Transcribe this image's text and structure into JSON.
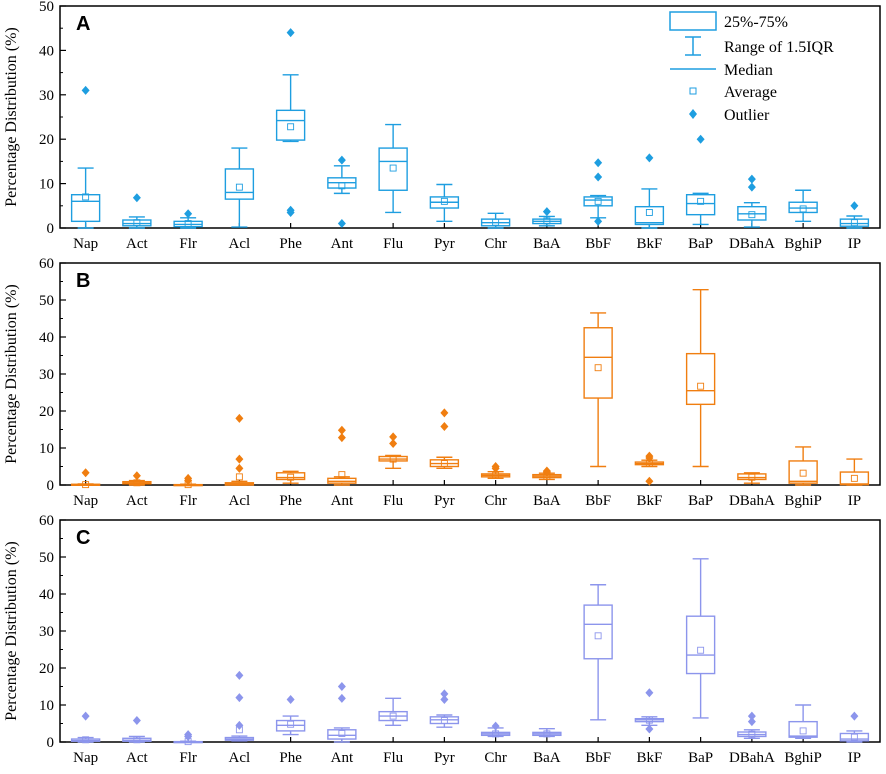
{
  "chart_data": {
    "type": "box",
    "y_axis_title": "Percentage Distribution (%)",
    "categories": [
      "Nap",
      "Act",
      "Flr",
      "Acl",
      "Phe",
      "Ant",
      "Flu",
      "Pyr",
      "Chr",
      "BaA",
      "BbF",
      "BkF",
      "BaP",
      "DBahA",
      "BghiP",
      "IP"
    ],
    "legend": {
      "box": "25%-75%",
      "whisker": "Range of 1.5IQR",
      "median": "Median",
      "average": "Average",
      "outlier": "Outlier"
    },
    "panels": [
      {
        "label": "A",
        "color": "#1e9ee0",
        "ylim": [
          0,
          50
        ],
        "yticks": [
          0,
          10,
          20,
          30,
          40,
          50
        ],
        "boxes": [
          {
            "min": 0,
            "q1": 1.5,
            "median": 6,
            "q3": 7.5,
            "max": 13.5,
            "mean": 7,
            "outliers": [
              31
            ]
          },
          {
            "min": 0,
            "q1": 0.5,
            "median": 1,
            "q3": 1.8,
            "max": 2.5,
            "mean": 1.2,
            "outliers": [
              6.8
            ]
          },
          {
            "min": 0,
            "q1": 0.3,
            "median": 0.8,
            "q3": 1.5,
            "max": 2.3,
            "mean": 1,
            "outliers": [
              3.2
            ]
          },
          {
            "min": 0.2,
            "q1": 6.5,
            "median": 8,
            "q3": 13.3,
            "max": 18,
            "mean": 9.2,
            "outliers": []
          },
          {
            "min": 19.5,
            "q1": 19.8,
            "median": 24.2,
            "q3": 26.5,
            "max": 34.5,
            "mean": 22.8,
            "outliers": [
              44,
              4,
              3.5
            ]
          },
          {
            "min": 7.8,
            "q1": 9,
            "median": 10.2,
            "q3": 11.3,
            "max": 14,
            "mean": 9.5,
            "outliers": [
              15.3,
              1
            ]
          },
          {
            "min": 3.5,
            "q1": 8.5,
            "median": 15,
            "q3": 18,
            "max": 23.3,
            "mean": 13.5,
            "outliers": []
          },
          {
            "min": 1.5,
            "q1": 4.5,
            "median": 5.8,
            "q3": 7,
            "max": 9.8,
            "mean": 6,
            "outliers": []
          },
          {
            "min": 0,
            "q1": 0.5,
            "median": 1.2,
            "q3": 2,
            "max": 3.3,
            "mean": 1.3,
            "outliers": []
          },
          {
            "min": 0.5,
            "q1": 1,
            "median": 1.5,
            "q3": 2,
            "max": 2.6,
            "mean": 1.6,
            "outliers": [
              3.7
            ]
          },
          {
            "min": 2.3,
            "q1": 5,
            "median": 6.3,
            "q3": 7,
            "max": 7.3,
            "mean": 6,
            "outliers": [
              14.7,
              11.5,
              1.5
            ]
          },
          {
            "min": 0,
            "q1": 0.8,
            "median": 1.2,
            "q3": 4.8,
            "max": 8.8,
            "mean": 3.5,
            "outliers": [
              15.8
            ]
          },
          {
            "min": 0.8,
            "q1": 3,
            "median": 5.5,
            "q3": 7.5,
            "max": 7.8,
            "mean": 6,
            "outliers": [
              20
            ]
          },
          {
            "min": 0.2,
            "q1": 1.8,
            "median": 3.2,
            "q3": 4.8,
            "max": 5.7,
            "mean": 3,
            "outliers": [
              11,
              9.2
            ]
          },
          {
            "min": 1.5,
            "q1": 3.5,
            "median": 4.5,
            "q3": 5.8,
            "max": 8.5,
            "mean": 4.3,
            "outliers": []
          },
          {
            "min": 0,
            "q1": 0.4,
            "median": 1,
            "q3": 2,
            "max": 2.7,
            "mean": 1.2,
            "outliers": [
              5
            ]
          }
        ]
      },
      {
        "label": "B",
        "color": "#f07e10",
        "ylim": [
          0,
          60
        ],
        "yticks": [
          0,
          10,
          20,
          30,
          40,
          50,
          60
        ],
        "boxes": [
          {
            "min": 0,
            "q1": 0,
            "median": 0,
            "q3": 0.2,
            "max": 0.3,
            "mean": 0.1,
            "outliers": [
              3.3
            ]
          },
          {
            "min": 0,
            "q1": 0.3,
            "median": 0.6,
            "q3": 0.9,
            "max": 1.2,
            "mean": 0.6,
            "outliers": [
              2.5
            ]
          },
          {
            "min": 0,
            "q1": 0,
            "median": 0,
            "q3": 0.1,
            "max": 0.2,
            "mean": 0.1,
            "outliers": [
              1.8,
              1.2
            ]
          },
          {
            "min": 0,
            "q1": 0,
            "median": 0.2,
            "q3": 0.6,
            "max": 1,
            "mean": 2.2,
            "outliers": [
              18,
              7,
              4.5
            ]
          },
          {
            "min": 0.5,
            "q1": 1.5,
            "median": 2,
            "q3": 3.3,
            "max": 3.7,
            "mean": 2.1,
            "outliers": []
          },
          {
            "min": 0,
            "q1": 0.5,
            "median": 1,
            "q3": 1.8,
            "max": 2.2,
            "mean": 2.8,
            "outliers": [
              14.8,
              12.8
            ]
          },
          {
            "min": 4.5,
            "q1": 6.5,
            "median": 7,
            "q3": 7.7,
            "max": 8,
            "mean": 7,
            "outliers": [
              13,
              11.2
            ]
          },
          {
            "min": 4.5,
            "q1": 5,
            "median": 5.8,
            "q3": 6.8,
            "max": 7.5,
            "mean": 5.8,
            "outliers": [
              19.5,
              15.8
            ]
          },
          {
            "min": 1.8,
            "q1": 2.2,
            "median": 2.6,
            "q3": 3,
            "max": 3.6,
            "mean": 2.6,
            "outliers": [
              5,
              4.5
            ]
          },
          {
            "min": 1.5,
            "q1": 2,
            "median": 2.4,
            "q3": 2.8,
            "max": 3.2,
            "mean": 2.3,
            "outliers": [
              3.8,
              3.5
            ]
          },
          {
            "min": 5,
            "q1": 23.5,
            "median": 34.5,
            "q3": 42.5,
            "max": 46.5,
            "mean": 31.7,
            "outliers": []
          },
          {
            "min": 5,
            "q1": 5.5,
            "median": 5.8,
            "q3": 6.2,
            "max": 6.7,
            "mean": 5.8,
            "outliers": [
              7.8,
              7.3,
              1
            ]
          },
          {
            "min": 5,
            "q1": 21.8,
            "median": 25.5,
            "q3": 35.5,
            "max": 52.8,
            "mean": 26.7,
            "outliers": []
          },
          {
            "min": 0.5,
            "q1": 1.5,
            "median": 2,
            "q3": 3,
            "max": 3.3,
            "mean": 2.1,
            "outliers": []
          },
          {
            "min": 0,
            "q1": 0.5,
            "median": 1,
            "q3": 6.5,
            "max": 10.3,
            "mean": 3.2,
            "outliers": []
          },
          {
            "min": 0,
            "q1": 0.1,
            "median": 0.3,
            "q3": 3.5,
            "max": 7,
            "mean": 1.8,
            "outliers": []
          }
        ]
      },
      {
        "label": "C",
        "color": "#8c95ec",
        "ylim": [
          0,
          60
        ],
        "yticks": [
          0,
          10,
          20,
          30,
          40,
          50,
          60
        ],
        "boxes": [
          {
            "min": 0,
            "q1": 0.2,
            "median": 0.4,
            "q3": 0.8,
            "max": 1.2,
            "mean": 0.6,
            "outliers": [
              7
            ]
          },
          {
            "min": 0,
            "q1": 0.2,
            "median": 0.5,
            "q3": 1,
            "max": 1.5,
            "mean": 0.6,
            "outliers": [
              5.8
            ]
          },
          {
            "min": 0,
            "q1": 0,
            "median": 0,
            "q3": 0.1,
            "max": 0.2,
            "mean": 0.1,
            "outliers": [
              2,
              1.5
            ]
          },
          {
            "min": 0.3,
            "q1": 0.5,
            "median": 0.8,
            "q3": 1.2,
            "max": 1.6,
            "mean": 3.3,
            "outliers": [
              18,
              12,
              4.5
            ]
          },
          {
            "min": 2,
            "q1": 3,
            "median": 4.5,
            "q3": 5.8,
            "max": 7,
            "mean": 4.8,
            "outliers": [
              11.5
            ]
          },
          {
            "min": 0,
            "q1": 0.8,
            "median": 1.8,
            "q3": 3.3,
            "max": 3.8,
            "mean": 2.3,
            "outliers": [
              15,
              11.8
            ]
          },
          {
            "min": 4.5,
            "q1": 5.8,
            "median": 7,
            "q3": 8.2,
            "max": 11.8,
            "mean": 7,
            "outliers": []
          },
          {
            "min": 4,
            "q1": 5,
            "median": 6,
            "q3": 6.8,
            "max": 7.3,
            "mean": 5.8,
            "outliers": [
              13,
              11.5
            ]
          },
          {
            "min": 1.5,
            "q1": 1.8,
            "median": 2.2,
            "q3": 2.6,
            "max": 3.8,
            "mean": 2.2,
            "outliers": [
              4.3
            ]
          },
          {
            "min": 1.5,
            "q1": 1.8,
            "median": 2.2,
            "q3": 2.6,
            "max": 3.6,
            "mean": 2.2,
            "outliers": []
          },
          {
            "min": 6,
            "q1": 22.5,
            "median": 31.8,
            "q3": 37,
            "max": 42.5,
            "mean": 28.7,
            "outliers": []
          },
          {
            "min": 4.5,
            "q1": 5.5,
            "median": 6,
            "q3": 6.3,
            "max": 6.8,
            "mean": 5.9,
            "outliers": [
              13.3,
              3.5
            ]
          },
          {
            "min": 6.5,
            "q1": 18.5,
            "median": 23.5,
            "q3": 34,
            "max": 49.5,
            "mean": 24.8,
            "outliers": []
          },
          {
            "min": 1,
            "q1": 1.5,
            "median": 2,
            "q3": 2.7,
            "max": 3.3,
            "mean": 2.1,
            "outliers": [
              7,
              5.5
            ]
          },
          {
            "min": 1,
            "q1": 1.3,
            "median": 1.6,
            "q3": 5.5,
            "max": 10,
            "mean": 3,
            "outliers": []
          },
          {
            "min": 0,
            "q1": 0.3,
            "median": 0.8,
            "q3": 2.3,
            "max": 3,
            "mean": 1.3,
            "outliers": [
              7
            ]
          }
        ]
      }
    ]
  }
}
